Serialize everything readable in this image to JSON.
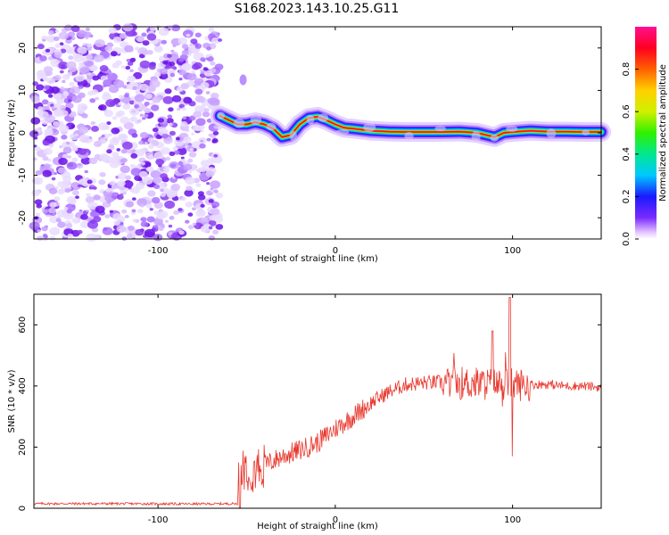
{
  "title": "S168.2023.143.10.25.G11",
  "charts": {
    "spectrogram": {
      "type": "heatmap",
      "xlabel": "Height of straight line (km)",
      "ylabel": "Frequency (Hz)",
      "xlim": [
        -170,
        150
      ],
      "ylim": [
        -25,
        25
      ],
      "xticks": [
        "-100",
        "0",
        "100"
      ],
      "yticks": [
        "-20",
        "-10",
        "0",
        "10",
        "20"
      ],
      "colorbar": {
        "label": "Normalized spectral amplitude",
        "range": [
          0,
          1
        ],
        "ticks": [
          "0.0",
          "0.2",
          "0.4",
          "0.6",
          "0.8"
        ]
      },
      "noise_region_x": [
        -170,
        -65
      ],
      "ridge": [
        [
          -65,
          4
        ],
        [
          -60,
          3
        ],
        [
          -55,
          2
        ],
        [
          -50,
          2
        ],
        [
          -45,
          2.5
        ],
        [
          -40,
          2
        ],
        [
          -35,
          1
        ],
        [
          -30,
          -1
        ],
        [
          -25,
          -0.5
        ],
        [
          -20,
          2
        ],
        [
          -15,
          3.5
        ],
        [
          -10,
          3.8
        ],
        [
          -5,
          3
        ],
        [
          0,
          2
        ],
        [
          5,
          1.2
        ],
        [
          10,
          1
        ],
        [
          20,
          0.5
        ],
        [
          30,
          0.3
        ],
        [
          40,
          0.2
        ],
        [
          50,
          0.2
        ],
        [
          60,
          0.2
        ],
        [
          70,
          0.3
        ],
        [
          80,
          0
        ],
        [
          85,
          -0.5
        ],
        [
          90,
          -1
        ],
        [
          95,
          0
        ],
        [
          100,
          0.2
        ],
        [
          110,
          0.5
        ],
        [
          120,
          0.3
        ],
        [
          130,
          0.3
        ],
        [
          140,
          0.2
        ],
        [
          150,
          0.2
        ]
      ]
    },
    "snr": {
      "type": "line",
      "xlabel": "Height of straight line (km)",
      "ylabel": "SNR (10 * v/v)",
      "xlim": [
        -170,
        150
      ],
      "ylim": [
        0,
        700
      ],
      "xticks": [
        "-100",
        "0",
        "100"
      ],
      "yticks": [
        "0",
        "200",
        "400",
        "600"
      ],
      "color": "#e8382e",
      "envelope": [
        [
          -170,
          15
        ],
        [
          -120,
          15
        ],
        [
          -80,
          14
        ],
        [
          -55,
          15
        ],
        [
          -52,
          140
        ],
        [
          -48,
          130
        ],
        [
          -40,
          140
        ],
        [
          -30,
          170
        ],
        [
          -20,
          190
        ],
        [
          -10,
          215
        ],
        [
          0,
          260
        ],
        [
          10,
          300
        ],
        [
          20,
          345
        ],
        [
          30,
          380
        ],
        [
          40,
          405
        ],
        [
          50,
          410
        ],
        [
          60,
          412
        ],
        [
          70,
          410
        ],
        [
          80,
          408
        ],
        [
          90,
          405
        ],
        [
          100,
          405
        ],
        [
          110,
          405
        ],
        [
          120,
          405
        ],
        [
          130,
          400
        ],
        [
          140,
          400
        ],
        [
          150,
          395
        ]
      ]
    }
  }
}
